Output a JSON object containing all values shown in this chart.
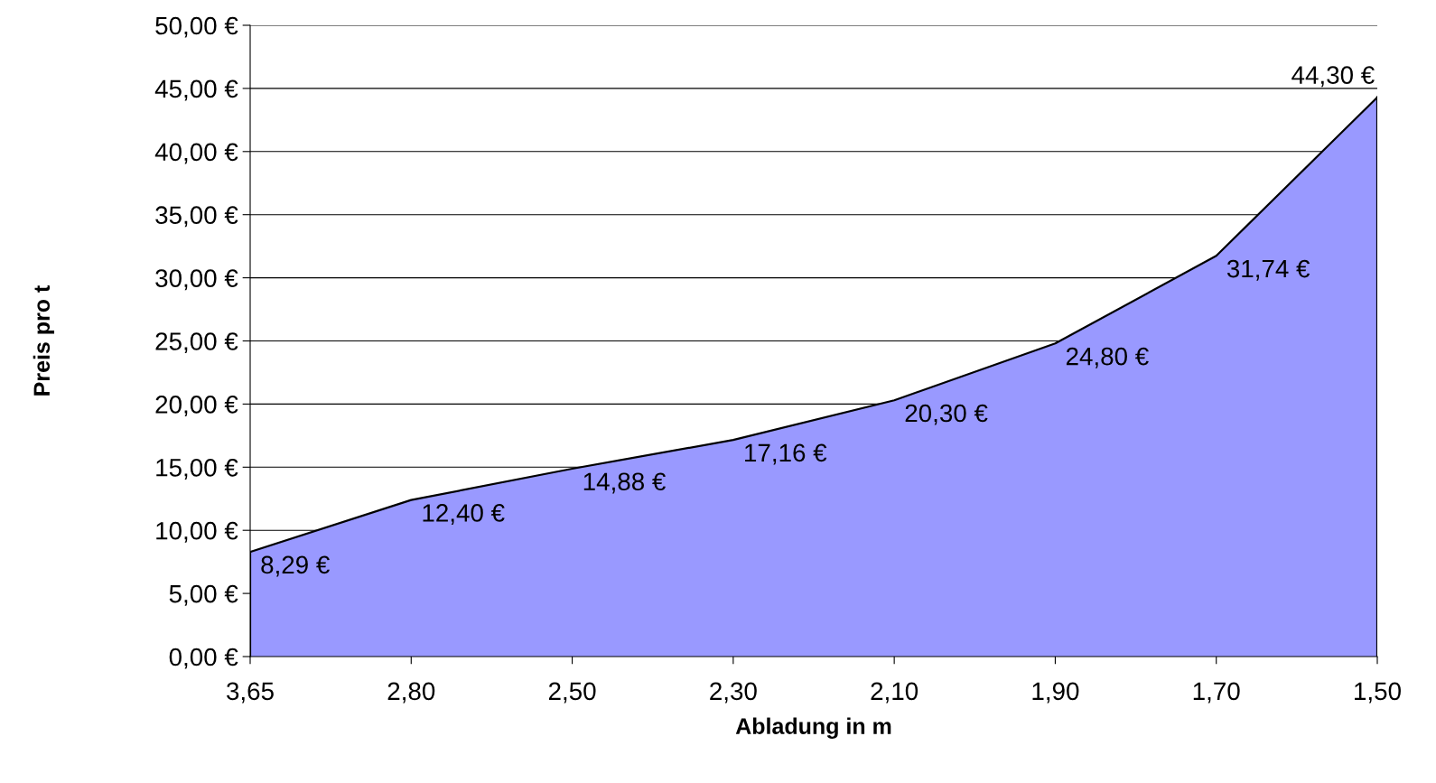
{
  "chart_data": {
    "type": "area",
    "xlabel": "Abladung in m",
    "ylabel": "Preis pro t",
    "categories": [
      "3,65",
      "2,80",
      "2,50",
      "2,30",
      "2,10",
      "1,90",
      "1,70",
      "1,50"
    ],
    "series": [
      {
        "color": "#9999ff",
        "values": [
          8.29,
          12.4,
          14.88,
          17.16,
          20.3,
          24.8,
          31.74,
          44.3
        ],
        "value_labels": [
          "8,29 €",
          "12,40 €",
          "14,88 €",
          "17,16 €",
          "20,30 €",
          "24,80 €",
          "31,74 €",
          "44,30 €"
        ]
      }
    ],
    "ylim": [
      0,
      50
    ],
    "yticks": [
      {
        "value": 0,
        "label": "0,00 €"
      },
      {
        "value": 5,
        "label": "5,00 €"
      },
      {
        "value": 10,
        "label": "10,00 €"
      },
      {
        "value": 15,
        "label": "15,00 €"
      },
      {
        "value": 20,
        "label": "20,00 €"
      },
      {
        "value": 25,
        "label": "25,00 €"
      },
      {
        "value": 30,
        "label": "30,00 €"
      },
      {
        "value": 35,
        "label": "35,00 €"
      },
      {
        "value": 40,
        "label": "40,00 €"
      },
      {
        "value": 45,
        "label": "45,00 €"
      },
      {
        "value": 50,
        "label": "50,00 €"
      }
    ],
    "grid": "y",
    "legend": false
  }
}
